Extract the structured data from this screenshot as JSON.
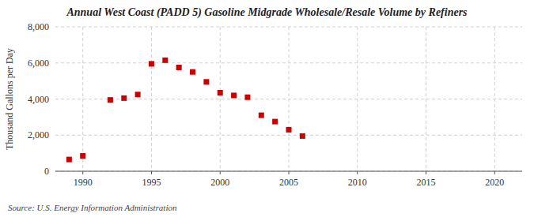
{
  "chart_data": {
    "type": "scatter",
    "title": "Annual West Coast (PADD 5) Gasoline Midgrade Wholesale/Resale Volume by Refiners",
    "y_label": "Thousand Gallons per Day",
    "source": "Source: U.S. Energy Information Administration",
    "x": [
      1989,
      1990,
      1992,
      1993,
      1994,
      1995,
      1996,
      1997,
      1998,
      1999,
      2000,
      2001,
      2002,
      2003,
      2004,
      2005,
      2006
    ],
    "values": [
      650,
      850,
      3950,
      4050,
      4250,
      5950,
      6150,
      5750,
      5500,
      4950,
      4350,
      4200,
      4100,
      3100,
      2750,
      2300,
      1950
    ],
    "color": "#cc0000",
    "marker": "square",
    "xlim": [
      1988,
      2022
    ],
    "ylim": [
      0,
      8000
    ],
    "xticks": [
      1990,
      1995,
      2000,
      2005,
      2010,
      2015,
      2020
    ],
    "yticks": [
      0,
      {
        "value": 2000,
        "label": "2,000"
      },
      {
        "value": 4000,
        "label": "4,000"
      },
      {
        "value": 6000,
        "label": "6,000"
      },
      {
        "value": 8000,
        "label": "8,000"
      }
    ],
    "grid": true
  }
}
